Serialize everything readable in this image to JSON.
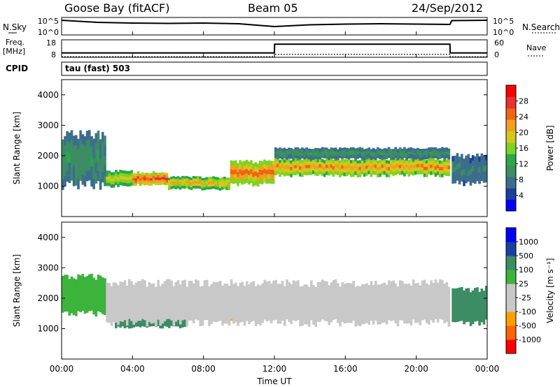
{
  "header": {
    "station": "Goose Bay (fitACF)",
    "beam": "Beam 05",
    "date": "24/Sep/2012"
  },
  "noise_panel": {
    "left_label": "N.Sky",
    "left_ticks": [
      "10^5",
      "10^0"
    ],
    "right_label": "N.Search",
    "right_ticks": [
      "10^5",
      "10^0"
    ]
  },
  "freq_panel": {
    "left_label_line1": "Freq.",
    "left_label_line2": "[MHz]",
    "left_ticks": [
      "18",
      "8"
    ],
    "right_label": "Nave",
    "right_ticks": [
      "60",
      "0"
    ]
  },
  "cpid": {
    "label": "CPID",
    "value": "tau (fast) 503"
  },
  "power_panel": {
    "ylabel": "Slant Range [km]",
    "yticks": [
      "4000",
      "3000",
      "2000",
      "1000"
    ],
    "colorbar_label": "Power [dB]",
    "colorbar_ticks": [
      "28",
      "24",
      "20",
      "16",
      "12",
      "8",
      "4"
    ]
  },
  "velocity_panel": {
    "ylabel": "Slant Range [km]",
    "yticks": [
      "4000",
      "3000",
      "2000",
      "1000"
    ],
    "colorbar_label": "Velocity [m s⁻¹]",
    "colorbar_ticks": [
      "1000",
      "500",
      "100",
      "25",
      "-25",
      "-100",
      "-500",
      "-1000"
    ]
  },
  "xaxis": {
    "ticks": [
      "00:00",
      "04:00",
      "08:00",
      "12:00",
      "16:00",
      "20:00",
      "00:00"
    ],
    "label": "Time UT"
  },
  "colors": {
    "power_scale": [
      "#0000ff",
      "#1a3fa0",
      "#3c6e8c",
      "#3c8c64",
      "#2aa84a",
      "#7ed321",
      "#d2c81e",
      "#f0a01e",
      "#f06414",
      "#e63232",
      "#ff0000"
    ],
    "velocity_scale": [
      "#ff0000",
      "#ff6400",
      "#ffa000",
      "#c8c8c8",
      "#c8c8c8",
      "#3cb43c",
      "#3c8c64",
      "#1a3fa0",
      "#0000ff"
    ]
  },
  "chart_data": [
    {
      "type": "line",
      "title": "N.Sky / N.Search",
      "x_hours": [
        0,
        2,
        4,
        6,
        8,
        10,
        12,
        14,
        16,
        18,
        20,
        21.9,
        22,
        24
      ],
      "y_log10": [
        4.2,
        3.6,
        3.4,
        3.3,
        3.4,
        3.2,
        2.4,
        2.9,
        3.1,
        3.2,
        3.1,
        3.0,
        4.1,
        4.2
      ]
    },
    {
      "type": "line",
      "title": "Freq. [MHz] / Nave",
      "series": [
        {
          "name": "Freq.",
          "x_hours": [
            0,
            12,
            12.01,
            21.9,
            21.91,
            24
          ],
          "values": [
            10.5,
            10.5,
            15.5,
            15.5,
            10.5,
            10.5
          ]
        },
        {
          "name": "Nave",
          "x_hours": [
            0,
            12,
            12.01,
            21.9,
            21.91,
            24
          ],
          "values": [
            2,
            2,
            10,
            10,
            2,
            2
          ]
        }
      ],
      "ylim_left": [
        8,
        18
      ],
      "ylim_right": [
        0,
        60
      ]
    },
    {
      "type": "heatmap",
      "title": "Power [dB]",
      "xlim_hours": [
        0,
        24
      ],
      "ylim_km": [
        0,
        4500
      ],
      "echo_regions": [
        {
          "t0": 0,
          "t1": 2.5,
          "r0": 1050,
          "r1": 2700,
          "power_db": 10
        },
        {
          "t0": 2.5,
          "t1": 4,
          "r0": 1000,
          "r1": 1500,
          "power_db": 18
        },
        {
          "t0": 4,
          "t1": 6,
          "r0": 1050,
          "r1": 1450,
          "power_db": 26
        },
        {
          "t0": 6,
          "t1": 9.5,
          "r0": 900,
          "r1": 1300,
          "power_db": 20
        },
        {
          "t0": 9.5,
          "t1": 12,
          "r0": 1050,
          "r1": 1800,
          "power_db": 24
        },
        {
          "t0": 12,
          "t1": 21.9,
          "r0": 1350,
          "r1": 1900,
          "power_db": 22
        },
        {
          "t0": 12,
          "t1": 21.9,
          "r0": 1900,
          "r1": 2250,
          "power_db": 10
        },
        {
          "t0": 22,
          "t1": 24,
          "r0": 1100,
          "r1": 2000,
          "power_db": 8
        }
      ]
    },
    {
      "type": "heatmap",
      "title": "Velocity [m s⁻¹]",
      "xlim_hours": [
        0,
        24
      ],
      "ylim_km": [
        0,
        4500
      ],
      "echo_regions": [
        {
          "t0": 0,
          "t1": 2.5,
          "r0": 1500,
          "r1": 2700,
          "velocity": 100
        },
        {
          "t0": 3,
          "t1": 7,
          "r0": 1050,
          "r1": 1500,
          "velocity": 300
        },
        {
          "t0": 7,
          "t1": 10,
          "r0": 1300,
          "r1": 1700,
          "velocity": -100
        },
        {
          "t0": 2.5,
          "t1": 21.9,
          "r0": 1200,
          "r1": 2500,
          "velocity": 0
        },
        {
          "t0": 22,
          "t1": 24,
          "r0": 1200,
          "r1": 2300,
          "velocity": 300
        }
      ]
    }
  ]
}
